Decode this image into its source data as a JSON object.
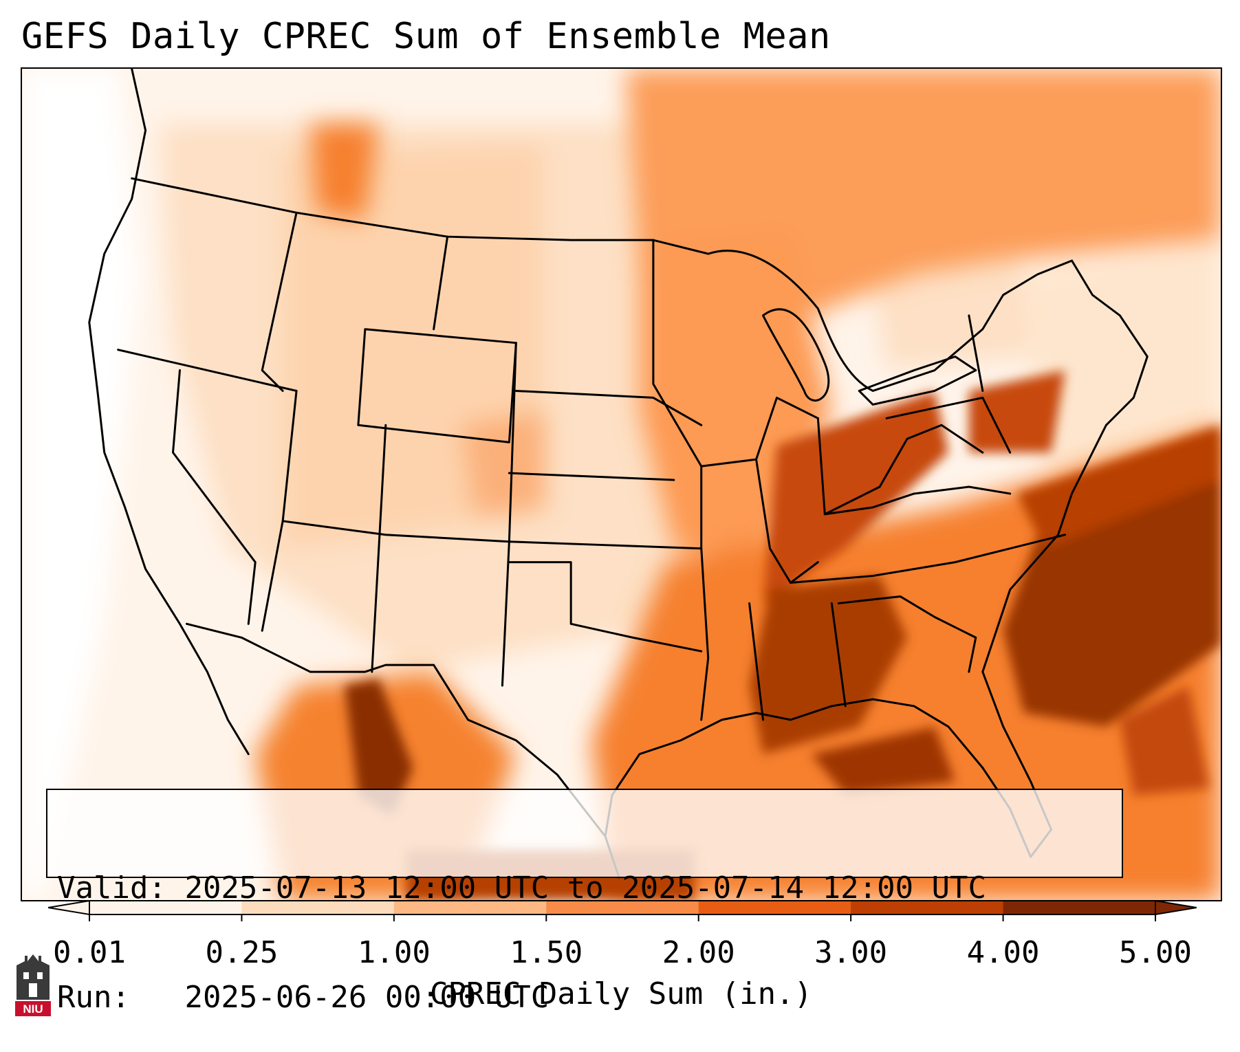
{
  "title": "GEFS Daily CPREC Sum of Ensemble Mean",
  "info": {
    "valid_label": "Valid:",
    "valid_value": "2025-07-13 12:00 UTC to 2025-07-14 12:00 UTC",
    "run_label": "Run:",
    "run_value": "2025-06-26 00:00 UTC"
  },
  "colorbar": {
    "label": "CPREC Daily Sum (in.)",
    "ticks": [
      "0.01",
      "0.25",
      "1.00",
      "1.50",
      "2.00",
      "3.00",
      "4.00",
      "5.00"
    ],
    "colors": [
      "#fff4ea",
      "#fddcbd",
      "#fdb883",
      "#f98b49",
      "#e85d14",
      "#bd3f03",
      "#7f2704"
    ],
    "extend": "both"
  },
  "map": {
    "projection": "Lambert conformal, CONUS",
    "shading_colors": [
      "#fff4ea",
      "#fee6ce",
      "#fdd0a2",
      "#fdae6b",
      "#fd8d3c",
      "#e6550d",
      "#a63603",
      "#7f2704"
    ]
  },
  "logo": {
    "text": "NIU",
    "color": "#c8102e"
  }
}
